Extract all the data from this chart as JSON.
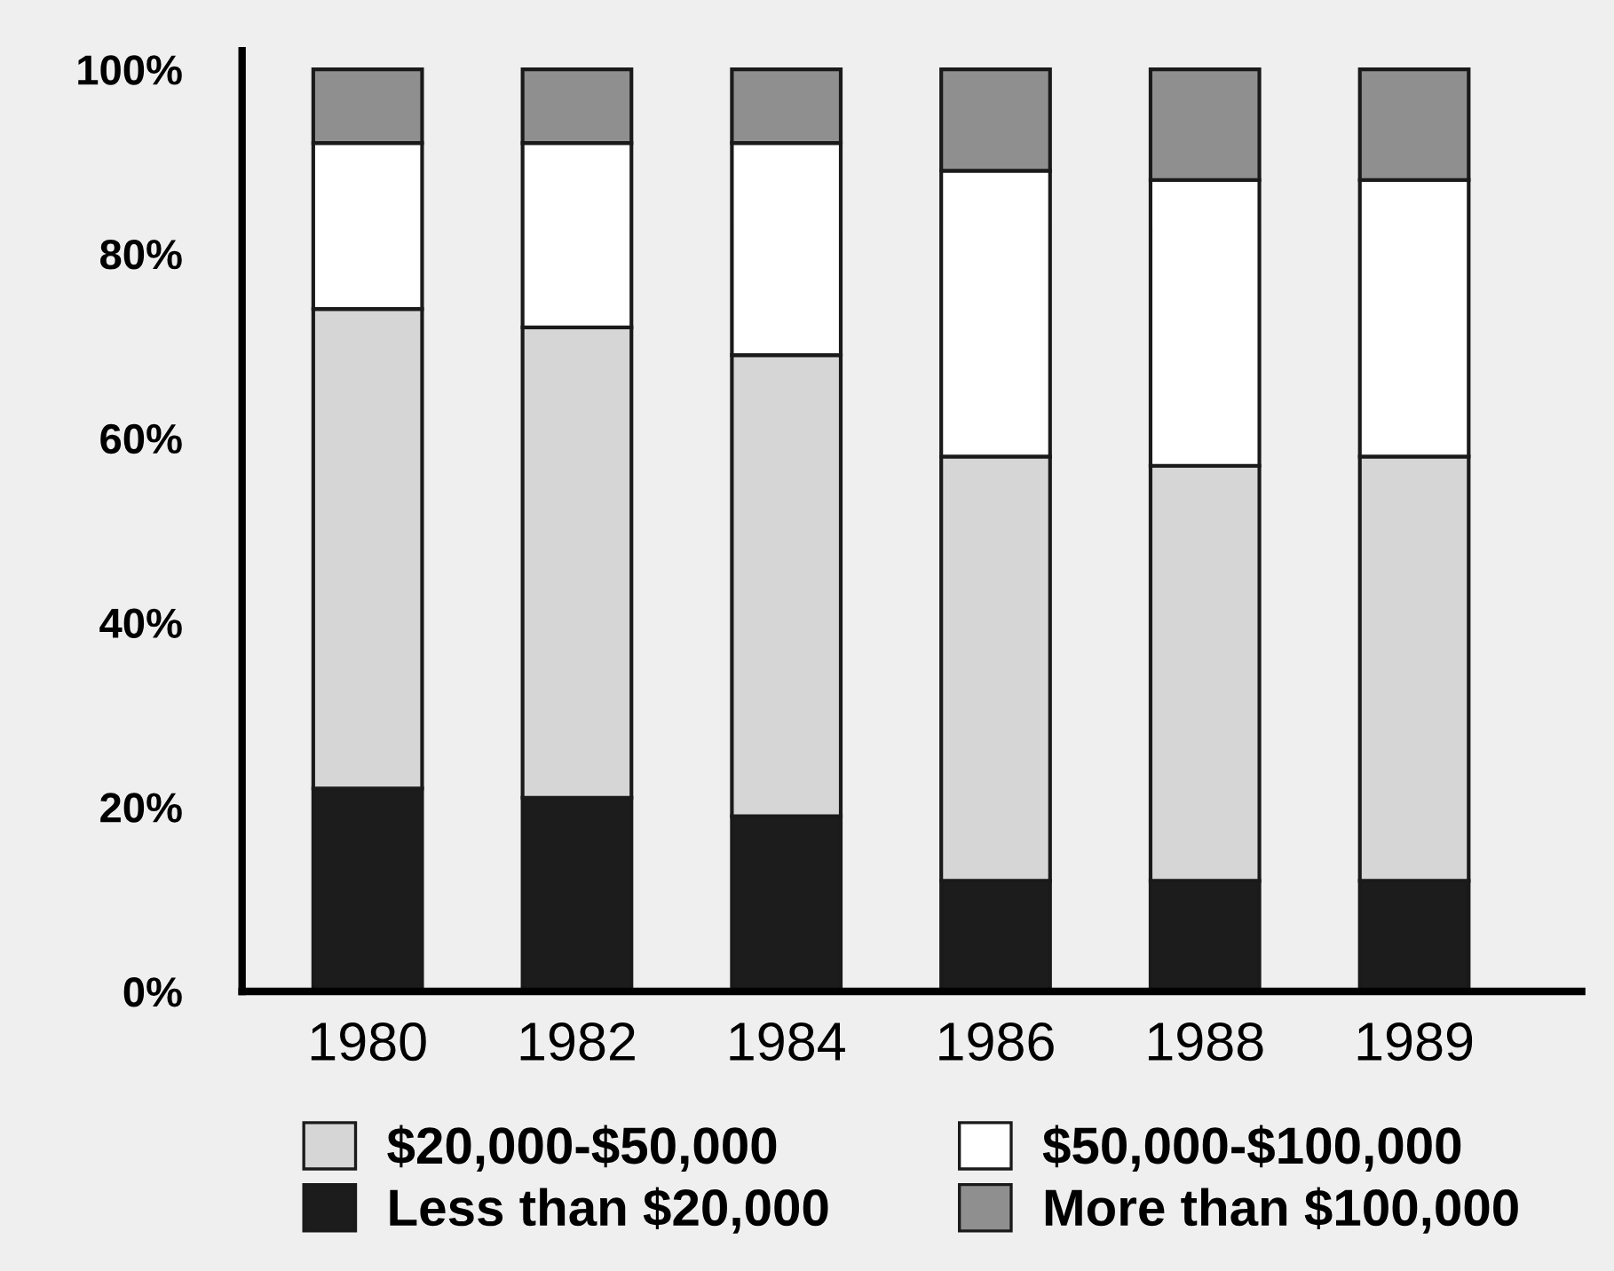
{
  "chart_data": {
    "type": "bar",
    "stacked": true,
    "categories": [
      "1980",
      "1982",
      "1984",
      "1986",
      "1988",
      "1989"
    ],
    "series": [
      {
        "name": "Less than $20,000",
        "color": "#1c1c1c",
        "values": [
          22,
          21,
          19,
          12,
          12,
          12
        ]
      },
      {
        "name": "$20,000-$50,000",
        "color": "#d6d6d6",
        "values": [
          52,
          51,
          50,
          46,
          45,
          46
        ]
      },
      {
        "name": "$50,000-$100,000",
        "color": "#ffffff",
        "values": [
          18,
          20,
          23,
          31,
          31,
          30
        ]
      },
      {
        "name": "More than $100,000",
        "color": "#8f8f8f",
        "values": [
          8,
          8,
          8,
          11,
          12,
          12
        ]
      }
    ],
    "ylim": [
      0,
      102
    ],
    "yticks": [
      {
        "value": 0,
        "label": "0%"
      },
      {
        "value": 20,
        "label": "20%"
      },
      {
        "value": 40,
        "label": "40%"
      },
      {
        "value": 60,
        "label": "60%"
      },
      {
        "value": 80,
        "label": "80%"
      },
      {
        "value": 100,
        "label": "100%"
      }
    ],
    "grid": false,
    "legend": "bottom"
  }
}
